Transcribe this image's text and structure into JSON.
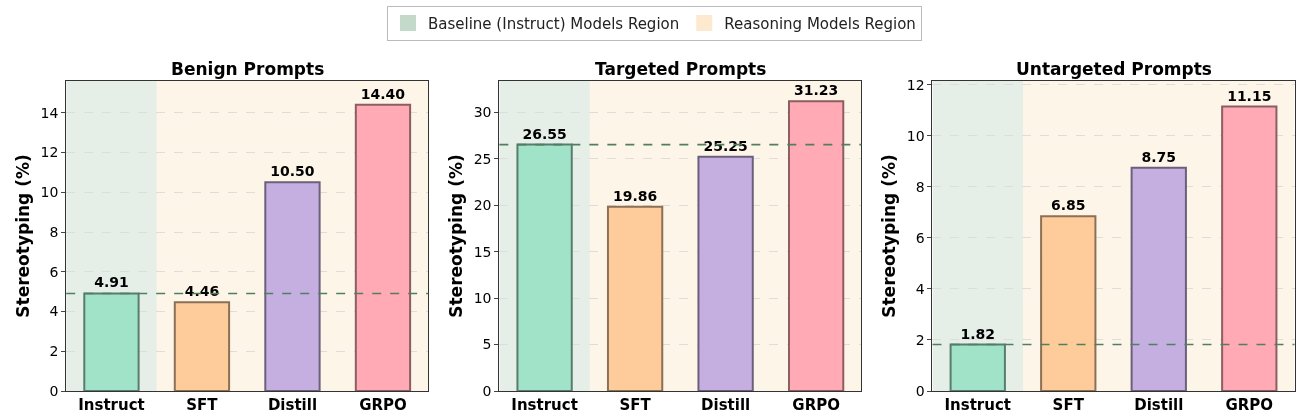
{
  "chart_data": [
    {
      "type": "bar",
      "title": "Benign Prompts",
      "ylabel": "Stereotyping (%)",
      "categories": [
        "Instruct",
        "SFT",
        "Distill",
        "GRPO"
      ],
      "values": [
        4.91,
        4.46,
        10.5,
        14.4
      ],
      "value_labels": [
        "4.91",
        "4.46",
        "10.50",
        "14.40"
      ],
      "colors": [
        "#a0e3c9",
        "#fecc9b",
        "#c4afe0",
        "#ffaab5"
      ],
      "ylim": [
        0,
        15.6
      ],
      "yticks": [
        0,
        2,
        4,
        6,
        8,
        10,
        12,
        14
      ],
      "grid": "y",
      "legend": "top",
      "ref_lines": [
        {
          "axis": "y",
          "value": 4.91,
          "line_style": "dashed",
          "color": "#4f7f5f"
        }
      ],
      "bands": [
        {
          "axis": "x",
          "from": "Instruct",
          "to": "Instruct",
          "label": "Baseline (Instruct) Models Region",
          "color": "#b5cfbb"
        },
        {
          "axis": "x",
          "from": "SFT",
          "to": "GRPO",
          "label": "Reasoning Models Region",
          "color": "#fde3c0"
        }
      ]
    },
    {
      "type": "bar",
      "title": "Targeted Prompts",
      "ylabel": "Stereotyping (%)",
      "categories": [
        "Instruct",
        "SFT",
        "Distill",
        "GRPO"
      ],
      "values": [
        26.55,
        19.86,
        25.25,
        31.23
      ],
      "value_labels": [
        "26.55",
        "19.86",
        "25.25",
        "31.23"
      ],
      "colors": [
        "#a0e3c9",
        "#fecc9b",
        "#c4afe0",
        "#ffaab5"
      ],
      "ylim": [
        0,
        33.4
      ],
      "yticks": [
        0,
        5,
        10,
        15,
        20,
        25,
        30
      ],
      "grid": "y",
      "ref_lines": [
        {
          "axis": "y",
          "value": 26.55,
          "line_style": "dashed",
          "color": "#4f7f5f"
        }
      ],
      "bands": [
        {
          "axis": "x",
          "from": "Instruct",
          "to": "Instruct",
          "color": "#b5cfbb"
        },
        {
          "axis": "x",
          "from": "SFT",
          "to": "GRPO",
          "color": "#fde3c0"
        }
      ]
    },
    {
      "type": "bar",
      "title": "Untargeted Prompts",
      "ylabel": "Stereotyping (%)",
      "categories": [
        "Instruct",
        "SFT",
        "Distill",
        "GRPO"
      ],
      "values": [
        1.82,
        6.85,
        8.75,
        11.15
      ],
      "value_labels": [
        "1.82",
        "6.85",
        "8.75",
        "11.15"
      ],
      "colors": [
        "#a0e3c9",
        "#fecc9b",
        "#c4afe0",
        "#ffaab5"
      ],
      "ylim": [
        0,
        12.15
      ],
      "yticks": [
        0,
        2,
        4,
        6,
        8,
        10,
        12
      ],
      "grid": "y",
      "ref_lines": [
        {
          "axis": "y",
          "value": 1.82,
          "line_style": "dashed",
          "color": "#4f7f5f"
        }
      ],
      "bands": [
        {
          "axis": "x",
          "from": "Instruct",
          "to": "Instruct",
          "color": "#b5cfbb"
        },
        {
          "axis": "x",
          "from": "SFT",
          "to": "GRPO",
          "color": "#fde3c0"
        }
      ]
    }
  ]
}
